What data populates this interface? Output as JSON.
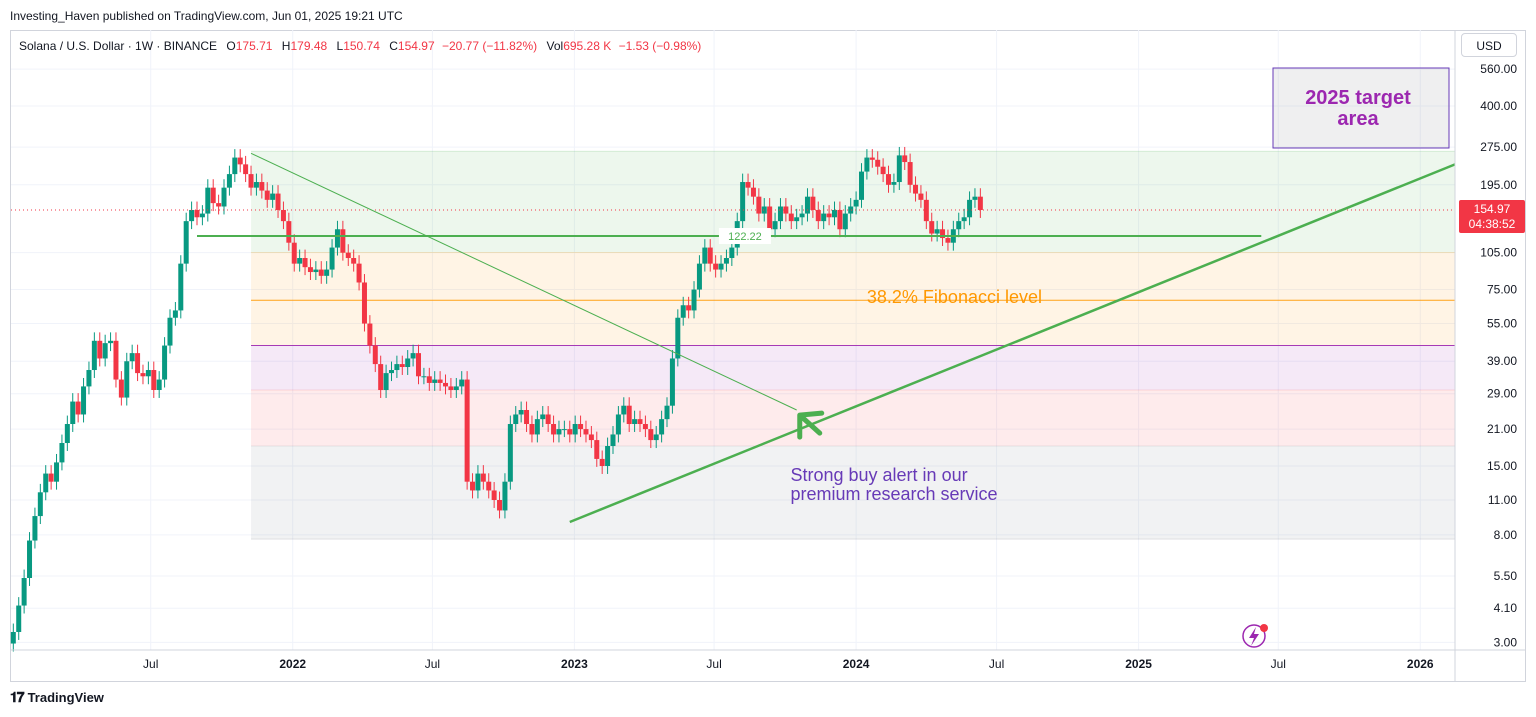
{
  "publisher": "Investing_Haven published on TradingView.com, Jun 01, 2025 19:21 UTC",
  "legend": {
    "symbol": "Solana / U.S. Dollar · 1W · BINANCE",
    "open_label": "O",
    "open": "175.71",
    "high_label": "H",
    "high": "179.48",
    "low_label": "L",
    "low": "150.74",
    "close_label": "C",
    "close": "154.97",
    "change": "−20.77 (−11.82%)",
    "vol_label": "Vol",
    "vol": "695.28 K",
    "vol_change": "−1.53 (−0.98%)"
  },
  "currency_button": "USD",
  "last_price": {
    "price": "154.97",
    "countdown": "04:38:52"
  },
  "footer_brand": "TradingView",
  "colors": {
    "up": "#089981",
    "down": "#f23645",
    "green_line": "#4caf50",
    "fib_orange": "#ff9800",
    "purple_text": "#9c27b0",
    "annotation_purple": "#673ab7"
  },
  "chart_data": {
    "type": "candlestick",
    "scale": "log",
    "y_ticks": [
      560,
      400,
      275,
      195,
      105,
      75,
      55,
      39,
      29,
      21,
      15,
      11,
      8,
      5.5,
      4.1,
      3
    ],
    "y_tick_labels": [
      "560.00",
      "400.00",
      "275.00",
      "195.00",
      "105.00",
      "75.00",
      "55.00",
      "39.00",
      "29.00",
      "21.00",
      "15.00",
      "11.00",
      "8.00",
      "5.50",
      "4.10",
      "3.00"
    ],
    "x_ticks": [
      {
        "label": "Jul",
        "date": "2021-07-01"
      },
      {
        "label": "2022",
        "date": "2022-01-01"
      },
      {
        "label": "Jul",
        "date": "2022-07-01"
      },
      {
        "label": "2023",
        "date": "2023-01-01"
      },
      {
        "label": "Jul",
        "date": "2023-07-01"
      },
      {
        "label": "2024",
        "date": "2024-01-01"
      },
      {
        "label": "Jul",
        "date": "2024-07-01"
      },
      {
        "label": "2025",
        "date": "2025-01-01"
      },
      {
        "label": "Jul",
        "date": "2025-07-01"
      },
      {
        "label": "2026",
        "date": "2026-01-01"
      }
    ],
    "x_range": [
      "2021-01-01",
      "2026-02-15"
    ],
    "y_range": [
      2.8,
      620
    ],
    "candles_weekly_closes": [
      [
        3.3,
        4.2,
        5.4,
        7.6,
        9.5,
        11.8,
        14,
        13,
        15.5,
        18.5,
        22,
        27,
        24,
        31,
        36,
        47,
        40,
        46,
        47,
        33,
        28,
        39,
        42,
        35,
        34,
        36,
        30,
        33,
        45,
        58,
        62,
        95,
        140,
        155,
        145,
        150,
        190,
        165,
        160,
        190,
        215,
        250,
        235,
        215,
        190,
        200,
        185,
        170,
        180,
        155,
        140,
        115,
        95,
        100,
        92,
        88,
        90,
        85,
        90,
        110,
        130,
        105,
        100,
        95,
        80,
        55,
        45,
        38,
        30,
        35,
        36,
        38,
        37,
        40,
        42,
        34,
        34,
        32,
        33,
        32,
        31,
        30,
        31,
        33,
        13,
        12,
        14,
        13,
        12,
        11,
        10,
        13,
        22,
        24,
        25,
        22,
        20,
        23,
        24,
        22,
        20,
        21,
        21,
        20,
        22,
        21,
        20,
        19,
        16,
        15,
        18,
        20,
        24,
        26,
        22,
        23,
        22,
        21,
        19,
        20,
        23,
        26,
        40,
        58,
        65,
        62,
        75,
        95,
        110,
        95,
        90,
        95,
        100,
        110,
        140,
        200,
        190,
        175,
        150,
        160,
        130,
        140,
        160,
        150,
        140,
        145,
        150,
        175,
        155,
        140,
        150,
        145,
        155,
        130,
        150,
        160,
        170,
        220,
        250,
        245,
        230,
        215,
        195,
        200,
        255,
        240,
        195,
        180,
        170,
        140,
        125,
        130,
        120,
        115,
        130,
        140,
        145,
        170,
        175,
        154.97
      ]
    ],
    "annotations": {
      "horizontal_level": "122.22",
      "fib_label": "38.2% Fibonacci level",
      "target_box": "2025 target area",
      "buy_note_line1": "Strong buy alert in our",
      "buy_note_line2": "premium research service"
    },
    "fib_levels": [
      265,
      105,
      68,
      45,
      30,
      18,
      7.7
    ]
  }
}
